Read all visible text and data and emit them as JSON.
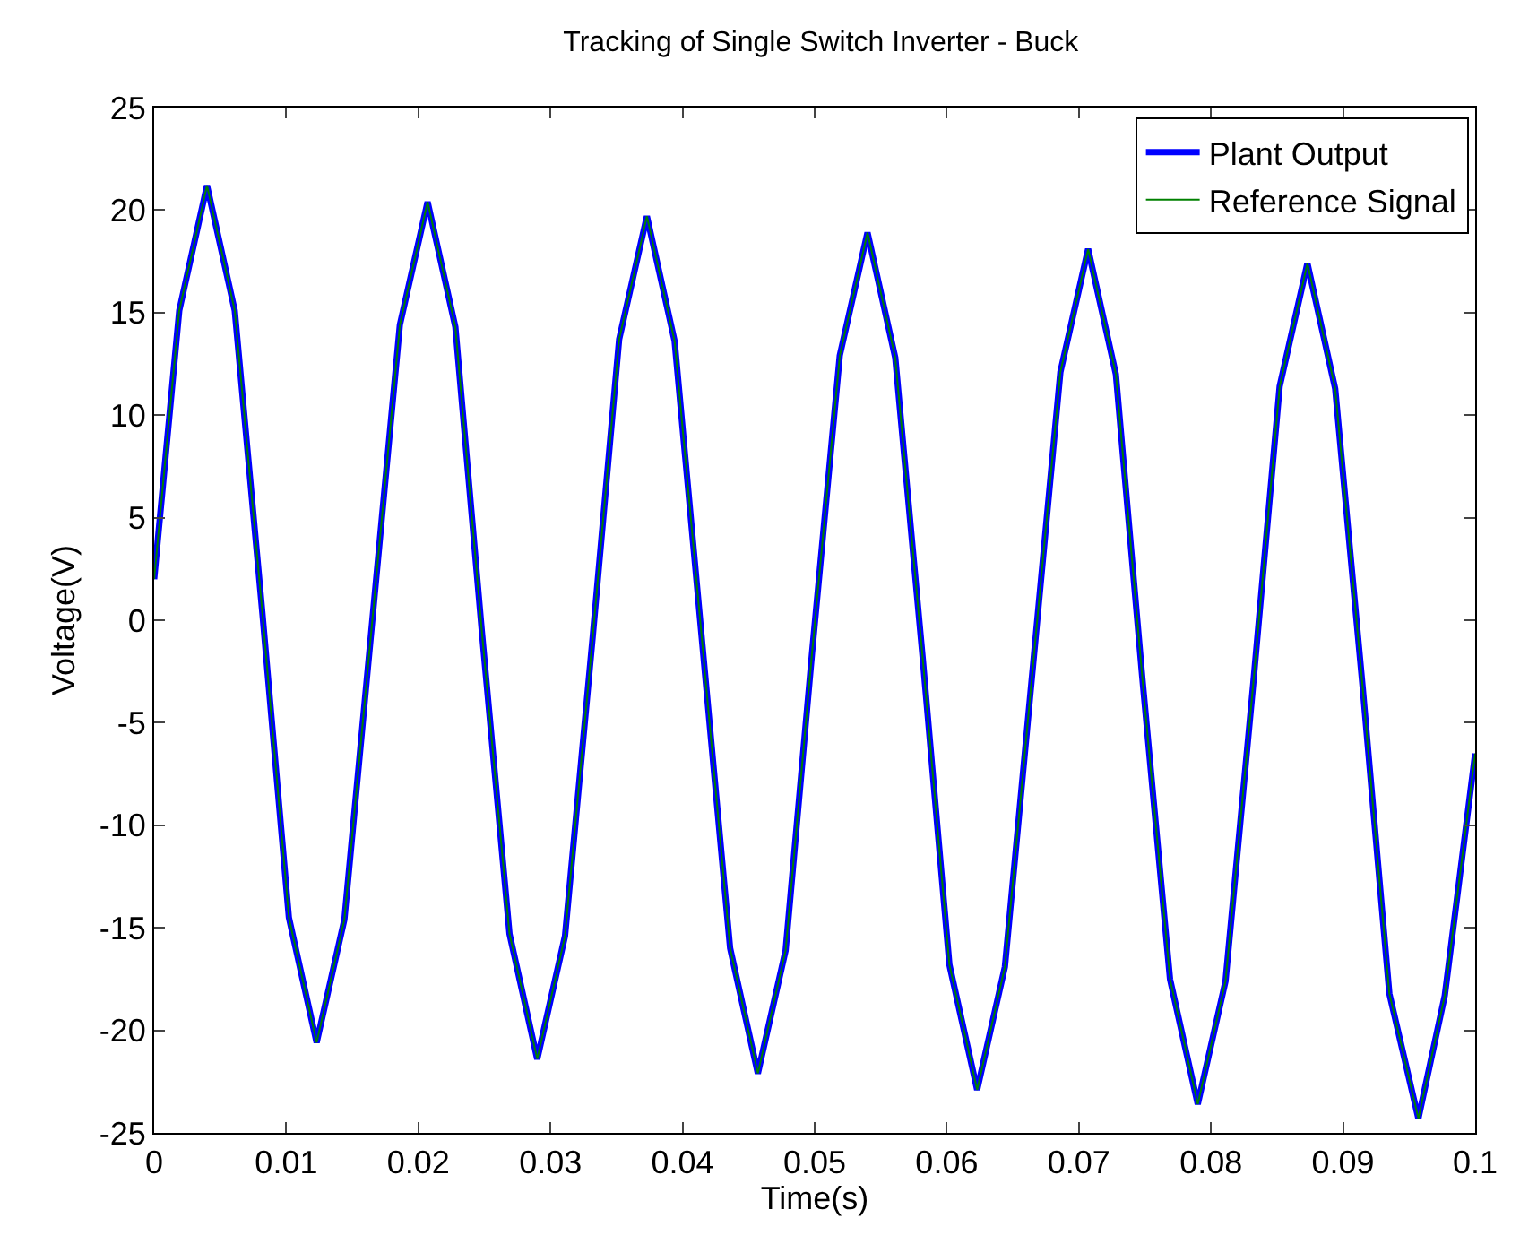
{
  "chart_data": {
    "type": "line",
    "title": "Tracking of Single Switch Inverter - Buck",
    "xlabel": "Time(s)",
    "ylabel": "Voltage(V)",
    "x": [
      0,
      0.0019,
      0.004,
      0.0061,
      0.0082,
      0.0102,
      0.0123,
      0.0144,
      0.0165,
      0.0186,
      0.0207,
      0.0228,
      0.0248,
      0.0269,
      0.029,
      0.0311,
      0.0332,
      0.0352,
      0.0373,
      0.0394,
      0.0415,
      0.0436,
      0.0457,
      0.0478,
      0.0498,
      0.0519,
      0.054,
      0.0561,
      0.0582,
      0.0602,
      0.0623,
      0.0644,
      0.0665,
      0.0686,
      0.0707,
      0.0728,
      0.0748,
      0.0769,
      0.079,
      0.0811,
      0.0832,
      0.0852,
      0.0873,
      0.0894,
      0.0915,
      0.0935,
      0.0957,
      0.0977,
      0.1
    ],
    "series": [
      {
        "name": "Plant Output",
        "color": "#0000ff",
        "values": [
          2.0,
          15.1,
          21.2,
          15.1,
          0.3,
          -14.5,
          -20.6,
          -14.6,
          -0.1,
          14.4,
          20.4,
          14.3,
          -0.5,
          -15.3,
          -21.4,
          -15.4,
          -0.8,
          13.7,
          19.7,
          13.6,
          -1.2,
          -16.0,
          -22.1,
          -16.1,
          -1.6,
          12.9,
          18.9,
          12.8,
          -2.0,
          -16.8,
          -22.9,
          -16.9,
          -2.4,
          12.1,
          18.1,
          12.0,
          -2.8,
          -17.5,
          -23.6,
          -17.6,
          -3.1,
          11.4,
          17.4,
          11.3,
          -3.4,
          -18.2,
          -24.3,
          -18.3,
          -6.5
        ]
      },
      {
        "name": "Reference Signal",
        "color": "#008000",
        "values": [
          2.0,
          15.1,
          21.2,
          15.1,
          0.3,
          -14.5,
          -20.6,
          -14.6,
          -0.1,
          14.4,
          20.4,
          14.3,
          -0.5,
          -15.3,
          -21.4,
          -15.4,
          -0.8,
          13.7,
          19.7,
          13.6,
          -1.2,
          -16.0,
          -22.1,
          -16.1,
          -1.6,
          12.9,
          18.9,
          12.8,
          -2.0,
          -16.8,
          -22.9,
          -16.9,
          -2.4,
          12.1,
          18.1,
          12.0,
          -2.8,
          -17.5,
          -23.6,
          -17.6,
          -3.1,
          11.4,
          17.4,
          11.3,
          -3.4,
          -18.2,
          -24.3,
          -18.3,
          -6.5
        ]
      }
    ],
    "xlim": [
      0,
      0.1
    ],
    "xticks": [
      0,
      0.01,
      0.02,
      0.03,
      0.04,
      0.05,
      0.06,
      0.07,
      0.08,
      0.09,
      0.1
    ],
    "ylim": [
      -25,
      25
    ],
    "yticks": [
      -25,
      -20,
      -15,
      -10,
      -5,
      0,
      5,
      10,
      15,
      20,
      25
    ],
    "legend": "top right",
    "grid": false,
    "marker": "none",
    "line_style": "solid"
  }
}
